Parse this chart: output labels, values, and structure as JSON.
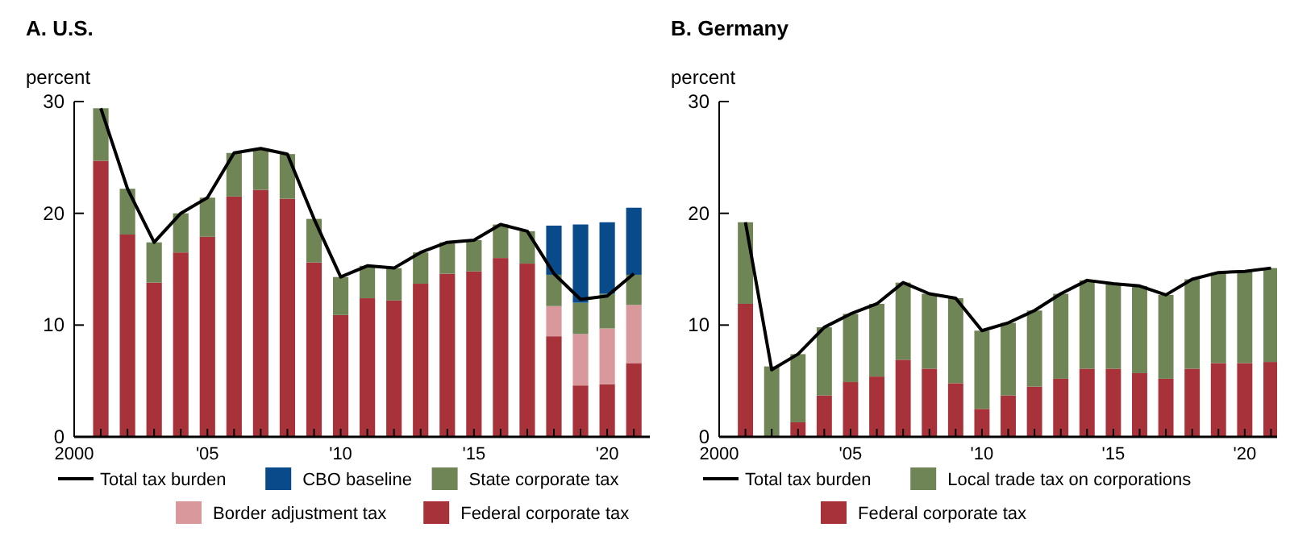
{
  "chart_data": [
    {
      "type": "bar",
      "title": "A. U.S.",
      "ylabel": "percent",
      "stacked": true,
      "legend": "bottom",
      "x": [
        2001,
        2002,
        2003,
        2004,
        2005,
        2006,
        2007,
        2008,
        2009,
        2010,
        2011,
        2012,
        2013,
        2014,
        2015,
        2016,
        2017,
        2018,
        2019,
        2020,
        2021
      ],
      "xlim": [
        2000,
        2021.6
      ],
      "xticks": [
        {
          "value": 2000,
          "label": "2000"
        },
        {
          "value": 2001,
          "label": null
        },
        {
          "value": 2002,
          "label": null
        },
        {
          "value": 2003,
          "label": null
        },
        {
          "value": 2004,
          "label": null
        },
        {
          "value": 2005,
          "label": "'05"
        },
        {
          "value": 2006,
          "label": null
        },
        {
          "value": 2007,
          "label": null
        },
        {
          "value": 2008,
          "label": null
        },
        {
          "value": 2009,
          "label": null
        },
        {
          "value": 2010,
          "label": "'10"
        },
        {
          "value": 2011,
          "label": null
        },
        {
          "value": 2012,
          "label": null
        },
        {
          "value": 2013,
          "label": null
        },
        {
          "value": 2014,
          "label": null
        },
        {
          "value": 2015,
          "label": "'15"
        },
        {
          "value": 2016,
          "label": null
        },
        {
          "value": 2017,
          "label": null
        },
        {
          "value": 2018,
          "label": null
        },
        {
          "value": 2019,
          "label": null
        },
        {
          "value": 2020,
          "label": "'20"
        },
        {
          "value": 2021,
          "label": null
        }
      ],
      "ylim": [
        0,
        30
      ],
      "yticks": [
        0,
        10,
        20,
        30
      ],
      "series": [
        {
          "name": "Federal corporate tax",
          "color": "#a8323a",
          "values": [
            24.7,
            18.1,
            13.8,
            16.5,
            17.9,
            21.5,
            22.1,
            21.3,
            15.6,
            10.9,
            12.4,
            12.2,
            13.7,
            14.6,
            14.8,
            16.0,
            15.5,
            9.0,
            4.6,
            4.7,
            6.6
          ]
        },
        {
          "name": "Border adjustment tax",
          "color": "#d9999c",
          "values": [
            null,
            null,
            null,
            null,
            null,
            null,
            null,
            null,
            null,
            null,
            null,
            null,
            null,
            null,
            null,
            null,
            null,
            2.7,
            4.6,
            5.0,
            5.2
          ]
        },
        {
          "name": "State corporate tax",
          "color": "#708556",
          "values": [
            4.7,
            4.1,
            3.6,
            3.5,
            3.5,
            3.9,
            3.7,
            4.0,
            3.9,
            3.4,
            2.9,
            2.9,
            2.8,
            2.8,
            2.8,
            3.0,
            2.9,
            2.8,
            2.8,
            3.1,
            2.7
          ]
        },
        {
          "name": "CBO baseline",
          "color": "#084a8a",
          "values": [
            null,
            null,
            null,
            null,
            null,
            null,
            null,
            null,
            null,
            null,
            null,
            null,
            null,
            null,
            null,
            null,
            null,
            4.4,
            7.0,
            6.4,
            6.0
          ]
        },
        {
          "name": "Total tax burden",
          "type": "line",
          "color": "#000000",
          "values": [
            29.4,
            22.2,
            17.4,
            20.0,
            21.4,
            25.4,
            25.8,
            25.3,
            19.5,
            14.3,
            15.3,
            15.1,
            16.5,
            17.4,
            17.6,
            19.0,
            18.4,
            14.6,
            12.3,
            12.6,
            14.6
          ]
        }
      ]
    },
    {
      "type": "bar",
      "title": "B. Germany",
      "ylabel": "percent",
      "stacked": true,
      "legend": "bottom",
      "x": [
        2001,
        2002,
        2003,
        2004,
        2005,
        2006,
        2007,
        2008,
        2009,
        2010,
        2011,
        2012,
        2013,
        2014,
        2015,
        2016,
        2017,
        2018,
        2019,
        2020,
        2021
      ],
      "xlim": [
        2000,
        2021.6
      ],
      "xticks": [
        {
          "value": 2000,
          "label": "2000"
        },
        {
          "value": 2001,
          "label": null
        },
        {
          "value": 2002,
          "label": null
        },
        {
          "value": 2003,
          "label": null
        },
        {
          "value": 2004,
          "label": null
        },
        {
          "value": 2005,
          "label": "'05"
        },
        {
          "value": 2006,
          "label": null
        },
        {
          "value": 2007,
          "label": null
        },
        {
          "value": 2008,
          "label": null
        },
        {
          "value": 2009,
          "label": null
        },
        {
          "value": 2010,
          "label": "'10"
        },
        {
          "value": 2011,
          "label": null
        },
        {
          "value": 2012,
          "label": null
        },
        {
          "value": 2013,
          "label": null
        },
        {
          "value": 2014,
          "label": null
        },
        {
          "value": 2015,
          "label": "'15"
        },
        {
          "value": 2016,
          "label": null
        },
        {
          "value": 2017,
          "label": null
        },
        {
          "value": 2018,
          "label": null
        },
        {
          "value": 2019,
          "label": null
        },
        {
          "value": 2020,
          "label": "'20"
        },
        {
          "value": 2021,
          "label": null
        }
      ],
      "ylim": [
        0,
        30
      ],
      "yticks": [
        0,
        10,
        20,
        30
      ],
      "series": [
        {
          "name": "Federal corporate tax",
          "color": "#a8323a",
          "values": [
            11.9,
            0,
            1.3,
            3.7,
            4.9,
            5.4,
            6.9,
            6.1,
            4.8,
            2.5,
            3.7,
            4.5,
            5.2,
            6.1,
            6.1,
            5.7,
            5.2,
            6.1,
            6.6,
            6.6,
            6.7
          ]
        },
        {
          "name": "Local trade tax on corporations",
          "color": "#708556",
          "values": [
            7.3,
            6.3,
            6.1,
            6.1,
            6.1,
            6.5,
            6.9,
            6.7,
            7.6,
            7.0,
            6.5,
            6.8,
            7.6,
            7.9,
            7.6,
            7.8,
            7.5,
            8.0,
            8.1,
            8.2,
            8.4
          ]
        },
        {
          "name": "Total tax burden",
          "type": "line",
          "color": "#000000",
          "values": [
            19.2,
            6.0,
            7.4,
            9.8,
            11.0,
            11.9,
            13.8,
            12.8,
            12.4,
            9.5,
            10.2,
            11.3,
            12.8,
            14.0,
            13.7,
            13.5,
            12.7,
            14.1,
            14.7,
            14.8,
            15.1
          ]
        }
      ]
    }
  ]
}
